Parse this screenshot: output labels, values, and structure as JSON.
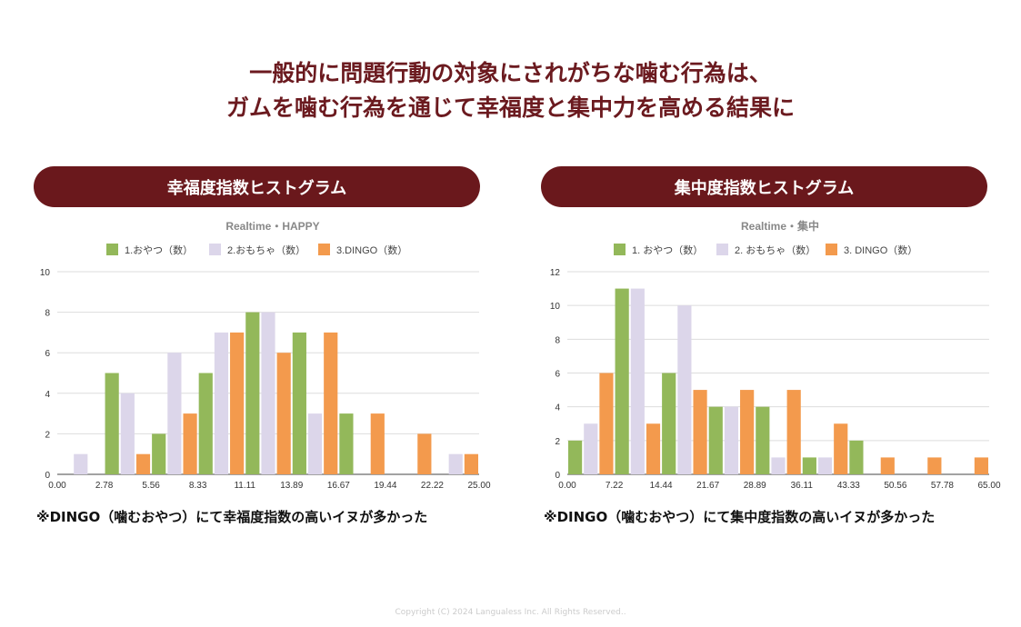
{
  "headline": {
    "line1": "一般的に問題行動の対象にされがちな噛む行為は、",
    "line2": "ガムを噛む行為を通じて幸福度と集中力を高める結果に"
  },
  "colors": {
    "title": "#6b1a1f",
    "pill": "#6a181c",
    "series": [
      "#93b85a",
      "#dcd6ea",
      "#f39a4d"
    ]
  },
  "chart_data": [
    {
      "type": "bar",
      "panel_title": "幸福度指数ヒストグラム",
      "title": "Realtime・HAPPY",
      "x_ticks": [
        "0.00",
        "2.78",
        "5.56",
        "8.33",
        "11.11",
        "13.89",
        "16.67",
        "19.44",
        "22.22",
        "25.00"
      ],
      "ylim": [
        0,
        10
      ],
      "y_ticks": [
        "0",
        "2",
        "4",
        "6",
        "8",
        "10"
      ],
      "grid": true,
      "legend": "top",
      "series": [
        {
          "name": "1.おやつ（数）",
          "values": [
            0,
            5,
            2,
            5,
            8,
            7,
            3,
            0,
            0
          ]
        },
        {
          "name": "2.おもちゃ（数）",
          "values": [
            1,
            4,
            6,
            7,
            8,
            3,
            0,
            0,
            1
          ]
        },
        {
          "name": "3.DINGO（数）",
          "values": [
            0,
            1,
            3,
            7,
            6,
            7,
            3,
            2,
            1
          ]
        }
      ],
      "note": "※DINGO（噛むおやつ）にて幸福度指数の高いイヌが多かった"
    },
    {
      "type": "bar",
      "panel_title": "集中度指数ヒストグラム",
      "title": "Realtime・集中",
      "x_ticks": [
        "0.00",
        "7.22",
        "14.44",
        "21.67",
        "28.89",
        "36.11",
        "43.33",
        "50.56",
        "57.78",
        "65.00"
      ],
      "ylim": [
        0,
        12
      ],
      "y_ticks": [
        "0",
        "2",
        "4",
        "6",
        "8",
        "10",
        "12"
      ],
      "grid": true,
      "legend": "top",
      "series": [
        {
          "name": "1. おやつ（数）",
          "values": [
            2,
            11,
            6,
            4,
            4,
            1,
            2,
            0,
            0
          ]
        },
        {
          "name": "2. おもちゃ（数）",
          "values": [
            3,
            11,
            10,
            4,
            1,
            1,
            0,
            0,
            0
          ]
        },
        {
          "name": "3. DINGO（数）",
          "values": [
            6,
            3,
            5,
            5,
            5,
            3,
            1,
            1,
            1
          ]
        }
      ],
      "note": "※DINGO（噛むおやつ）にて集中度指数の高いイヌが多かった"
    }
  ],
  "copyright": "Copyright (C) 2024 Langualess Inc.  All Rights Reserved.."
}
